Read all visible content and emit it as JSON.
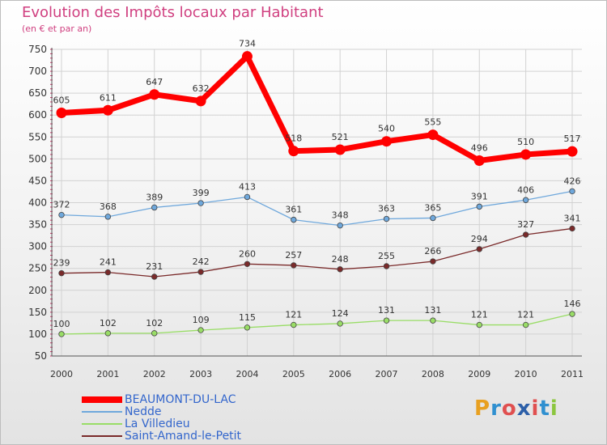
{
  "header": {
    "title": "Evolution des Impôts locaux par Habitant",
    "subtitle": "(en € et par an)"
  },
  "logo": {
    "letters": [
      "P",
      "r",
      "o",
      "x",
      "i",
      "t",
      "i"
    ],
    "colors": [
      "#e8a020",
      "#3090d0",
      "#e05050",
      "#2c5fa8",
      "#e05050",
      "#3090d0",
      "#8cc63f"
    ]
  },
  "chart_data": {
    "type": "line",
    "title": "Evolution des Impôts locaux par Habitant",
    "subtitle": "(en € et par an)",
    "xlabel": "",
    "ylabel": "",
    "x": [
      "2000",
      "2001",
      "2002",
      "2003",
      "2004",
      "2005",
      "2006",
      "2007",
      "2008",
      "2009",
      "2010",
      "2011"
    ],
    "ylim": [
      50,
      750
    ],
    "yticks": [
      50,
      100,
      150,
      200,
      250,
      300,
      350,
      400,
      450,
      500,
      550,
      600,
      650,
      700,
      750
    ],
    "grid": true,
    "legend_position": "bottom-left",
    "series": [
      {
        "name": "BEAUMONT-DU-LAC",
        "color": "#ff0000",
        "values": [
          605,
          611,
          647,
          632,
          734,
          518,
          521,
          540,
          555,
          496,
          510,
          517
        ]
      },
      {
        "name": "Nedde",
        "color": "#6fa8dc",
        "values": [
          372,
          368,
          389,
          399,
          413,
          361,
          348,
          363,
          365,
          391,
          406,
          426
        ]
      },
      {
        "name": "La Villedieu",
        "color": "#99dd66",
        "values": [
          100,
          102,
          102,
          109,
          115,
          121,
          124,
          131,
          131,
          121,
          121,
          146
        ]
      },
      {
        "name": "Saint-Amand-le-Petit",
        "color": "#7a2a2a",
        "values": [
          239,
          241,
          231,
          242,
          260,
          257,
          248,
          255,
          266,
          294,
          327,
          341
        ]
      }
    ]
  }
}
